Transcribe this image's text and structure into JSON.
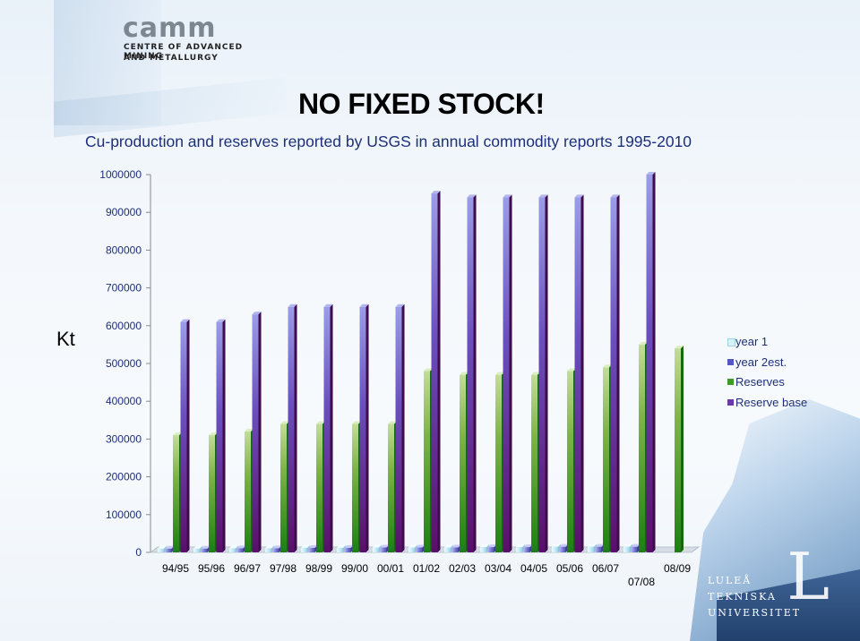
{
  "logo": {
    "wordmark": "camm",
    "line1": "CENTRE OF ADVANCED MINING",
    "line2": "AND METALLURGY"
  },
  "headline": "NO FIXED STOCK!",
  "subtitle": "Cu-production and reserves reported by USGS in annual commodity reports 1995-2010",
  "university": {
    "line1": "LULEÅ",
    "line2": "TEKNISKA",
    "line3": "UNIVERSITET"
  },
  "chart_data": {
    "type": "bar",
    "title": "",
    "ylabel": "Kt",
    "xlabel": "",
    "ylim": [
      0,
      1000000
    ],
    "yticks": [
      "0",
      "100000",
      "200000",
      "300000",
      "400000",
      "500000",
      "600000",
      "700000",
      "800000",
      "900000",
      "1000000"
    ],
    "grid": false,
    "legend_position": "right",
    "categories": [
      "94/95",
      "95/96",
      "96/97",
      "97/98",
      "98/99",
      "99/00",
      "00/01",
      "01/02",
      "02/03",
      "03/04",
      "04/05",
      "05/06",
      "06/07",
      "07/08",
      "08/09"
    ],
    "series": [
      {
        "name": "year 1",
        "color": "#d8f2fa",
        "values": [
          10000,
          10000,
          11000,
          11000,
          12000,
          12000,
          13000,
          13000,
          13000,
          14000,
          14000,
          15000,
          15000,
          15000,
          0
        ]
      },
      {
        "name": "year 2est.",
        "color": "#7d7fd9",
        "values": [
          10000,
          10000,
          11000,
          11000,
          12000,
          12000,
          13000,
          13000,
          13000,
          14000,
          14000,
          15000,
          15000,
          15000,
          0
        ]
      },
      {
        "name": "Reserves",
        "color": "#8ab653",
        "values": [
          310000,
          310000,
          320000,
          340000,
          340000,
          340000,
          340000,
          480000,
          470000,
          470000,
          470000,
          480000,
          490000,
          550000,
          540000
        ]
      },
      {
        "name": "Reserve base",
        "color": "#6f56c0",
        "values": [
          610000,
          610000,
          630000,
          650000,
          650000,
          650000,
          650000,
          950000,
          940000,
          940000,
          940000,
          940000,
          940000,
          1000000,
          0
        ]
      }
    ]
  }
}
